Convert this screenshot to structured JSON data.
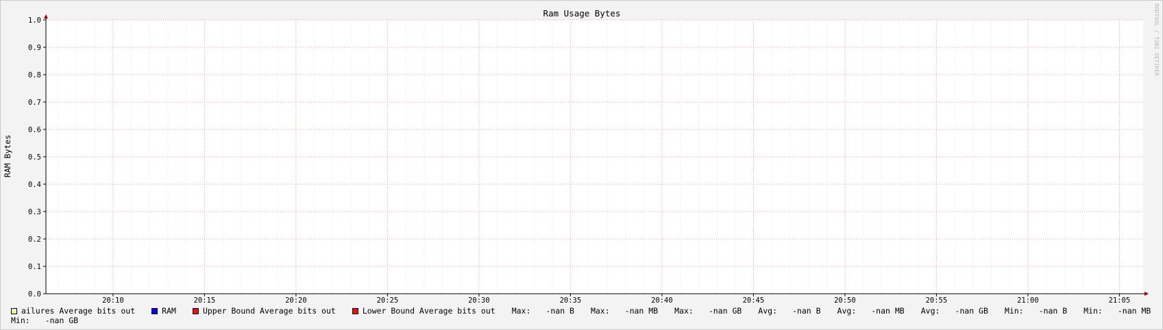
{
  "chart_data": {
    "type": "line",
    "title": "Ram Usage Bytes",
    "xlabel": "",
    "ylabel": "RAM Bytes",
    "ylim": [
      0,
      1.0
    ],
    "y_ticks": [
      "0.0",
      "0.1",
      "0.2",
      "0.3",
      "0.4",
      "0.5",
      "0.6",
      "0.7",
      "0.8",
      "0.9",
      "1.0"
    ],
    "x_ticks": [
      "20:10",
      "20:15",
      "20:20",
      "20:25",
      "20:30",
      "20:35",
      "20:40",
      "20:45",
      "20:50",
      "20:55",
      "21:00",
      "21:05"
    ],
    "grid": true,
    "series": [],
    "watermark": "RRDTOOL / TOBI OETIKER"
  },
  "legend": {
    "entries": [
      {
        "label": "ailures Average bits out",
        "color": "#f0f0b0"
      },
      {
        "label": "RAM",
        "color": "#0000ff"
      },
      {
        "label": "Upper Bound Average bits out",
        "color": "#ee1111"
      },
      {
        "label": "Lower Bound Average bits out",
        "color": "#ee1111"
      }
    ],
    "stats": [
      {
        "label": "Max:",
        "value": "-nan B"
      },
      {
        "label": "Max:",
        "value": "-nan MB"
      },
      {
        "label": "Max:",
        "value": "-nan GB"
      },
      {
        "label": "Avg:",
        "value": "-nan B"
      },
      {
        "label": "Avg:",
        "value": "-nan MB"
      },
      {
        "label": "Avg:",
        "value": "-nan GB"
      },
      {
        "label": "Min:",
        "value": "-nan B"
      },
      {
        "label": "Min:",
        "value": "-nan MB"
      }
    ],
    "stats_row2": [
      {
        "label": "Min:",
        "value": "-nan GB"
      }
    ]
  }
}
